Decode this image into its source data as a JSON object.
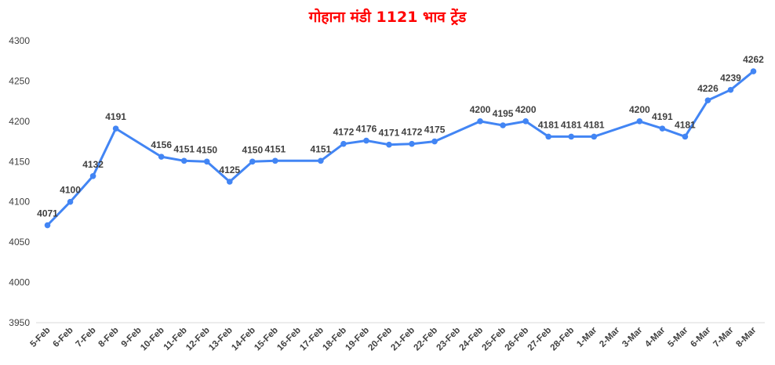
{
  "chart_data": {
    "type": "line",
    "title": "गोहाना मंडी 1121 भाव ट्रेंड",
    "title_color": "#ff0000",
    "line_color": "#4285f4",
    "grid": false,
    "ylim": [
      3950,
      4300
    ],
    "yticks": [
      3950,
      4000,
      4050,
      4100,
      4150,
      4200,
      4250,
      4300
    ],
    "categories": [
      "5-Feb",
      "6-Feb",
      "7-Feb",
      "8-Feb",
      "9-Feb",
      "10-Feb",
      "11-Feb",
      "12-Feb",
      "13-Feb",
      "14-Feb",
      "15-Feb",
      "16-Feb",
      "17-Feb",
      "18-Feb",
      "19-Feb",
      "20-Feb",
      "21-Feb",
      "22-Feb",
      "23-Feb",
      "24-Feb",
      "25-Feb",
      "26-Feb",
      "27-Feb",
      "28-Feb",
      "1-Mar",
      "2-Mar",
      "3-Mar",
      "4-Mar",
      "5-Mar",
      "6-Mar",
      "7-Mar",
      "8-Mar"
    ],
    "series": [
      {
        "values": [
          4071,
          4100,
          4132,
          4191,
          null,
          4156,
          4151,
          4150,
          4125,
          4150,
          4151,
          null,
          4151,
          4172,
          4176,
          4171,
          4172,
          4175,
          null,
          4200,
          4195,
          4200,
          4181,
          4181,
          4181,
          null,
          4200,
          4191,
          4181,
          4226,
          4239,
          4262
        ]
      }
    ]
  }
}
